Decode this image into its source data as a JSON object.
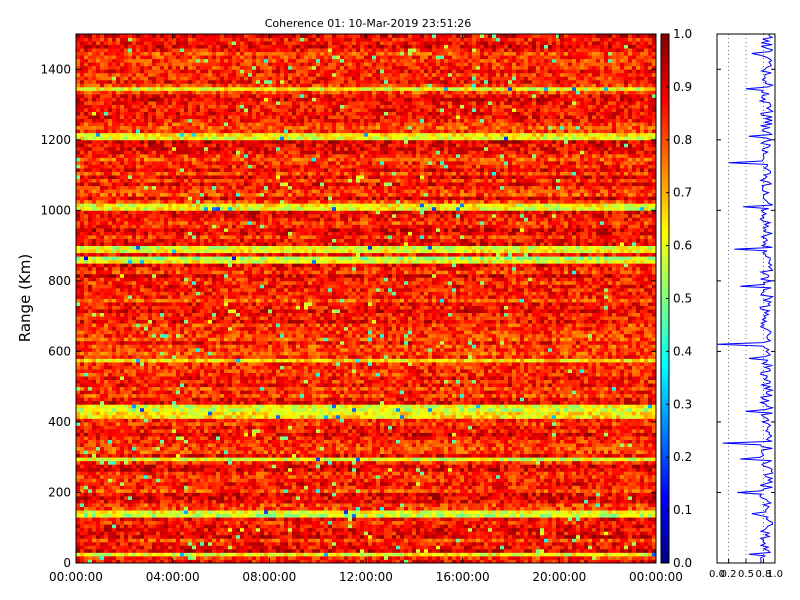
{
  "chart_data": [
    {
      "type": "heatmap",
      "title": "Coherence 01: 10-Mar-2019 23:51:26",
      "xlabel": "",
      "ylabel": "Range (Km)",
      "x_tick_labels": [
        "00:00:00",
        "04:00:00",
        "08:00:00",
        "12:00:00",
        "16:00:00",
        "20:00:00",
        "00:00:00"
      ],
      "x_range": [
        "00:00:00",
        "24:00:00"
      ],
      "y_tick_labels": [
        "0",
        "200",
        "400",
        "600",
        "800",
        "1000",
        "1200",
        "1400"
      ],
      "ylim": [
        0,
        1500
      ],
      "colorscale": "jet",
      "colorbar": {
        "range": [
          0.0,
          1.0
        ],
        "tick_labels": [
          "0.0",
          "0.1",
          "0.2",
          "0.3",
          "0.4",
          "0.5",
          "0.6",
          "0.7",
          "0.8",
          "0.9",
          "1.0"
        ]
      },
      "typical_value": 0.85,
      "low_coherence_ranges_km": [
        25,
        140,
        295,
        420,
        440,
        575,
        860,
        890,
        1010,
        1210,
        1345
      ]
    },
    {
      "type": "line",
      "title": "",
      "xlabel": "",
      "ylabel": "",
      "xlim": [
        0.0,
        1.0
      ],
      "ylim": [
        0,
        1500
      ],
      "x_tick_labels": [
        "0.0",
        "0.2",
        "0.5",
        "0.8",
        "1.0"
      ],
      "series_color": "#0000ff",
      "typical_value": 0.85,
      "dips": [
        {
          "range_km": 25,
          "value": 0.55
        },
        {
          "range_km": 140,
          "value": 0.6
        },
        {
          "range_km": 200,
          "value": 0.35
        },
        {
          "range_km": 295,
          "value": 0.4
        },
        {
          "range_km": 340,
          "value": 0.1
        },
        {
          "range_km": 430,
          "value": 0.5
        },
        {
          "range_km": 580,
          "value": 0.55
        },
        {
          "range_km": 620,
          "value": 0.0
        },
        {
          "range_km": 785,
          "value": 0.4
        },
        {
          "range_km": 890,
          "value": 0.3
        },
        {
          "range_km": 1010,
          "value": 0.45
        },
        {
          "range_km": 1135,
          "value": 0.2
        },
        {
          "range_km": 1210,
          "value": 0.55
        },
        {
          "range_km": 1345,
          "value": 0.5
        },
        {
          "range_km": 1445,
          "value": 0.6
        }
      ]
    }
  ]
}
